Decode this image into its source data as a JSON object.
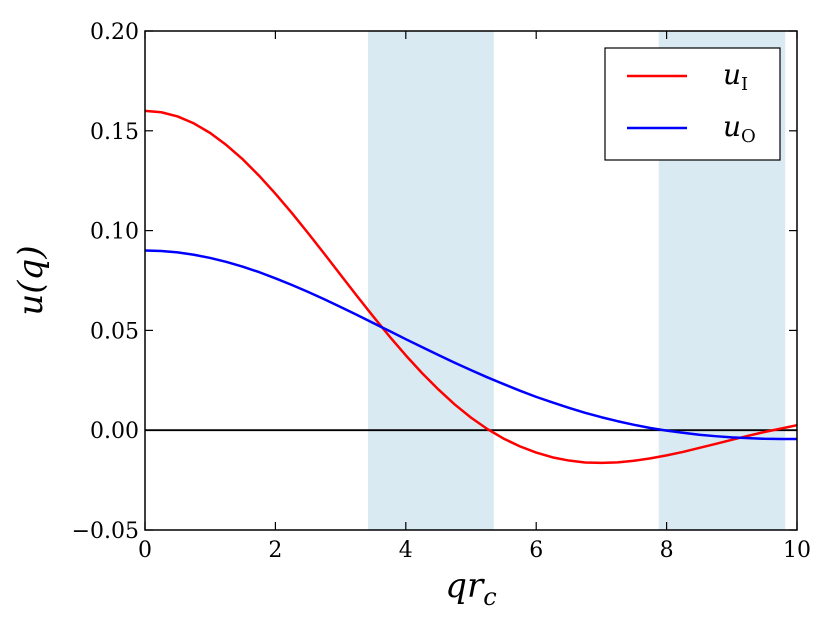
{
  "chart_data": {
    "type": "line",
    "title": "",
    "xlabel": "qr_c",
    "ylabel": "u(q)",
    "xlim": [
      0,
      10
    ],
    "ylim": [
      -0.05,
      0.2
    ],
    "grid": false,
    "legend_position": "top-right",
    "x_ticks": [
      0,
      2,
      4,
      6,
      8,
      10
    ],
    "x_tick_labels": [
      "0",
      "2",
      "4",
      "6",
      "8",
      "10"
    ],
    "y_ticks": [
      -0.05,
      0.0,
      0.05,
      0.1,
      0.15,
      0.2
    ],
    "y_tick_labels": [
      "−0.05",
      "0.00",
      "0.05",
      "0.10",
      "0.15",
      "0.20"
    ],
    "shaded_regions": [
      {
        "x_start": 3.42,
        "x_end": 5.35,
        "color": "#d9eaf3"
      },
      {
        "x_start": 7.88,
        "x_end": 9.82,
        "color": "#d9eaf3"
      }
    ],
    "reference_line": {
      "y": 0.0,
      "color": "#000000"
    },
    "series": [
      {
        "name": "u_I",
        "color": "#ff0000",
        "x": [
          0.0,
          0.25,
          0.5,
          0.75,
          1.0,
          1.25,
          1.5,
          1.75,
          2.0,
          2.25,
          2.5,
          2.75,
          3.0,
          3.25,
          3.5,
          3.75,
          4.0,
          4.25,
          4.5,
          4.75,
          5.0,
          5.25,
          5.5,
          5.75,
          6.0,
          6.25,
          6.5,
          6.75,
          7.0,
          7.25,
          7.5,
          7.75,
          8.0,
          8.25,
          8.5,
          8.75,
          9.0,
          9.25,
          9.5,
          9.75,
          10.0
        ],
        "y": [
          0.16,
          0.1593,
          0.1572,
          0.1537,
          0.1489,
          0.1428,
          0.1357,
          0.1275,
          0.1185,
          0.1089,
          0.0988,
          0.0884,
          0.0778,
          0.0673,
          0.057,
          0.047,
          0.0375,
          0.0286,
          0.0204,
          0.0129,
          0.0063,
          0.0006,
          -0.0042,
          -0.0081,
          -0.0112,
          -0.0136,
          -0.0152,
          -0.0162,
          -0.0164,
          -0.0161,
          -0.0153,
          -0.0141,
          -0.0126,
          -0.0109,
          -0.0089,
          -0.0069,
          -0.0048,
          -0.0028,
          -0.0009,
          0.0008,
          0.0025
        ]
      },
      {
        "name": "u_O",
        "color": "#0000ff",
        "x": [
          0.0,
          0.25,
          0.5,
          0.75,
          1.0,
          1.25,
          1.5,
          1.75,
          2.0,
          2.25,
          2.5,
          2.75,
          3.0,
          3.25,
          3.5,
          3.75,
          4.0,
          4.25,
          4.5,
          4.75,
          5.0,
          5.25,
          5.5,
          5.75,
          6.0,
          6.25,
          6.5,
          6.75,
          7.0,
          7.25,
          7.5,
          7.75,
          8.0,
          8.25,
          8.5,
          8.75,
          9.0,
          9.25,
          9.5,
          9.75,
          10.0
        ],
        "y": [
          0.09,
          0.0898,
          0.0891,
          0.0879,
          0.0863,
          0.0843,
          0.0819,
          0.0792,
          0.0761,
          0.0728,
          0.0693,
          0.0656,
          0.0617,
          0.0578,
          0.0537,
          0.0497,
          0.0456,
          0.0416,
          0.0377,
          0.0338,
          0.0301,
          0.0265,
          0.0231,
          0.0198,
          0.0167,
          0.0139,
          0.0112,
          0.0087,
          0.0065,
          0.0045,
          0.0027,
          0.0011,
          -0.0002,
          -0.0013,
          -0.0023,
          -0.003,
          -0.0036,
          -0.004,
          -0.0043,
          -0.0044,
          -0.0044
        ]
      }
    ]
  }
}
